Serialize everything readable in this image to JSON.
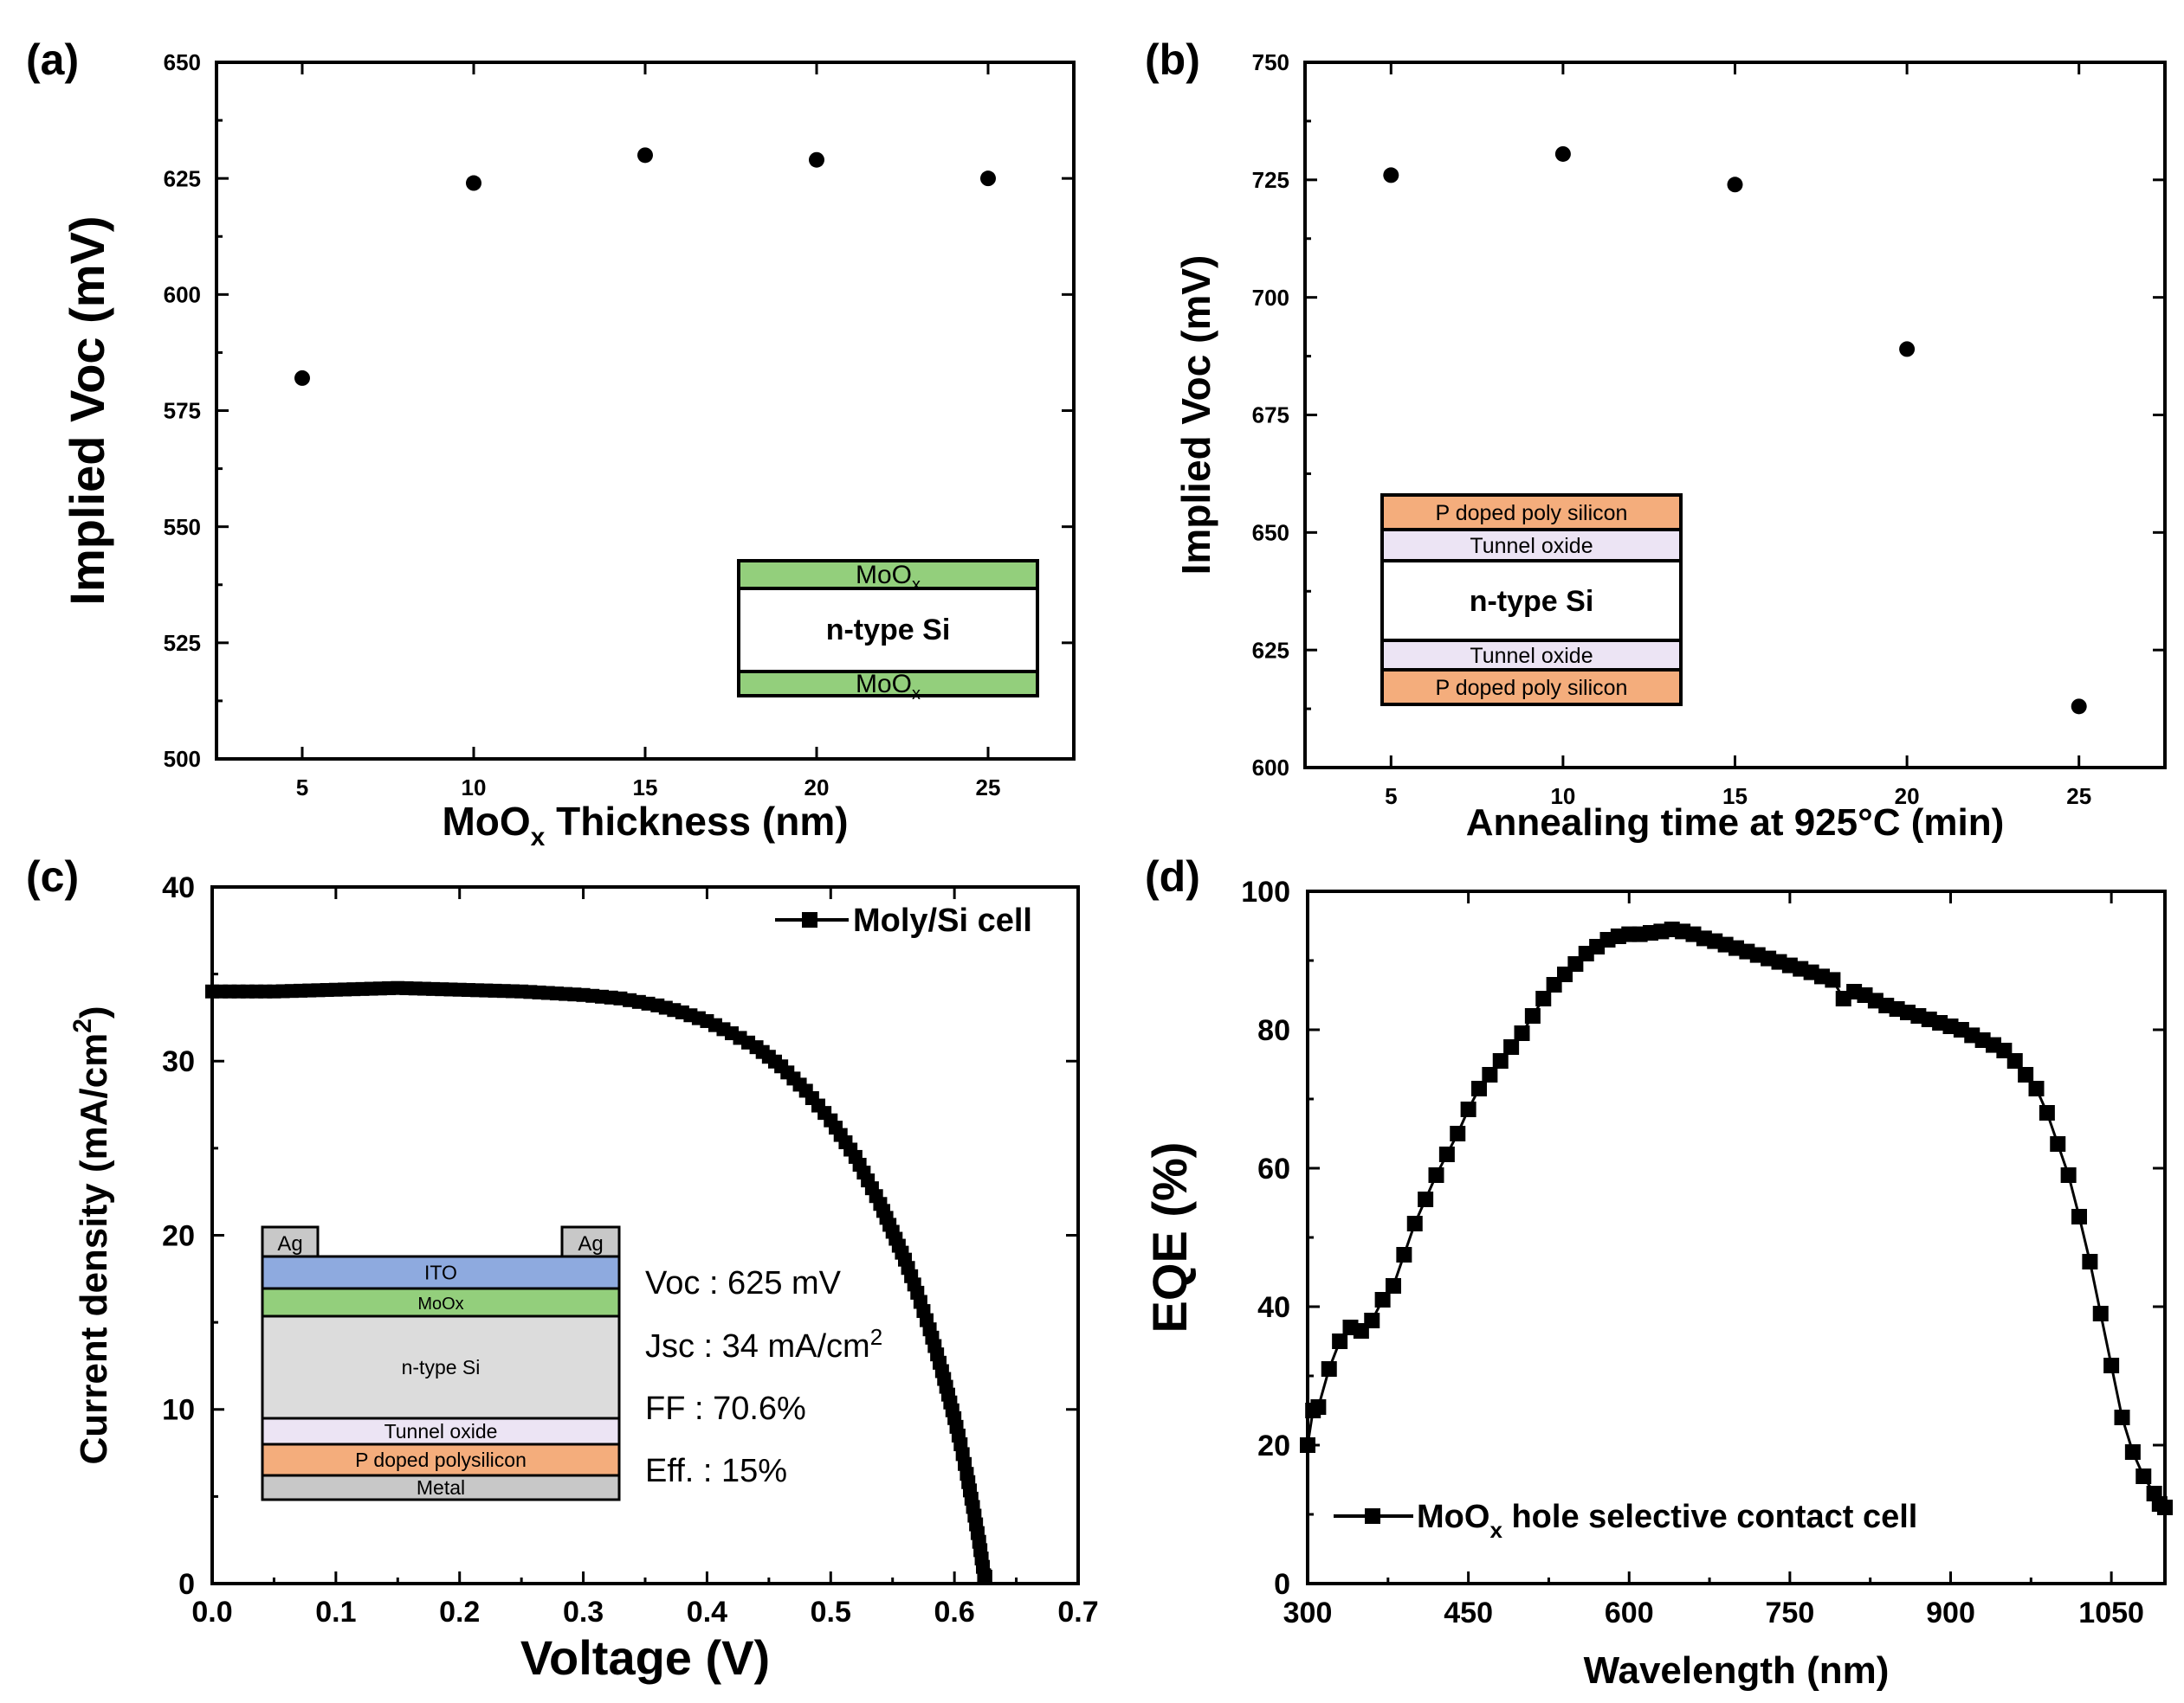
{
  "colors": {
    "moox_green": "#93cf7c",
    "orange": "#f4ad7c",
    "lavender": "#ece4f4",
    "ito_blue": "#8eaadf",
    "gray": "#c8c8c8",
    "si_gray": "#dcdcdc",
    "white": "#ffffff"
  },
  "chart_data": [
    {
      "panel": "(a)",
      "type": "scatter",
      "xlabel": "MoOx Thickness (nm)",
      "xlabel_main": "MoO",
      "xlabel_sub": "x",
      "xlabel_rest": " Thickness (nm)",
      "ylabel": "Implied Voc (mV)",
      "xlim": [
        2.5,
        27.5
      ],
      "ylim": [
        500,
        650
      ],
      "xticks": [
        5,
        10,
        15,
        20,
        25
      ],
      "yticks": [
        500,
        525,
        550,
        575,
        600,
        625,
        650
      ],
      "x": [
        5,
        10,
        15,
        20,
        25
      ],
      "y": [
        582,
        624,
        630,
        629,
        625
      ],
      "inset": {
        "layers": [
          {
            "label": "MoO",
            "sub": "x",
            "color": "moox_green"
          },
          {
            "label": "n-type Si",
            "sub": "",
            "color": "white"
          },
          {
            "label": "MoO",
            "sub": "x",
            "color": "moox_green"
          }
        ]
      }
    },
    {
      "panel": "(b)",
      "type": "scatter",
      "xlabel": "Annealing time at 925°C (min)",
      "ylabel": "Implied Voc (mV)",
      "xlim": [
        2.5,
        27.5
      ],
      "ylim": [
        600,
        750
      ],
      "xticks": [
        5,
        10,
        15,
        20,
        25
      ],
      "yticks": [
        600,
        625,
        650,
        675,
        700,
        725,
        750
      ],
      "x": [
        5,
        10,
        15,
        20,
        25
      ],
      "y": [
        726,
        730.5,
        724,
        689,
        613
      ],
      "inset": {
        "layers": [
          {
            "label": "P doped poly silicon",
            "color": "orange"
          },
          {
            "label": "Tunnel oxide",
            "color": "lavender"
          },
          {
            "label": "n-type Si",
            "color": "white"
          },
          {
            "label": "Tunnel oxide",
            "color": "lavender"
          },
          {
            "label": "P doped poly silicon",
            "color": "orange"
          }
        ]
      }
    },
    {
      "panel": "(c)",
      "type": "line",
      "xlabel": "Voltage (V)",
      "ylabel": "Current density (mA/cm2)",
      "ylabel_main": "Current density (mA/cm",
      "ylabel_sup": "2",
      "ylabel_end": ")",
      "xlim": [
        0,
        0.7
      ],
      "ylim": [
        0,
        40
      ],
      "xticks": [
        0.0,
        0.1,
        0.2,
        0.3,
        0.4,
        0.5,
        0.6,
        0.7
      ],
      "xtick_labels": [
        "0.0",
        "0.1",
        "0.2",
        "0.3",
        "0.4",
        "0.5",
        "0.6",
        "0.7"
      ],
      "yticks": [
        0,
        10,
        20,
        30,
        40
      ],
      "legend": "Moly/Si cell",
      "series": [
        {
          "name": "Moly/Si cell",
          "x": [
            0.0,
            0.05,
            0.1,
            0.15,
            0.2,
            0.25,
            0.3,
            0.33,
            0.36,
            0.38,
            0.4,
            0.42,
            0.44,
            0.46,
            0.48,
            0.5,
            0.52,
            0.54,
            0.55,
            0.56,
            0.57,
            0.58,
            0.59,
            0.6,
            0.605,
            0.61,
            0.615,
            0.62,
            0.625
          ],
          "y": [
            34.0,
            34.0,
            34.1,
            34.2,
            34.1,
            34.0,
            33.8,
            33.6,
            33.2,
            32.8,
            32.3,
            31.6,
            30.8,
            29.7,
            28.3,
            26.6,
            24.5,
            21.8,
            20.2,
            18.6,
            16.7,
            14.6,
            12.2,
            9.5,
            8.0,
            6.3,
            4.4,
            2.4,
            0.0
          ]
        }
      ],
      "inset": {
        "ag_left": "Ag",
        "ag_right": "Ag",
        "layers": [
          {
            "label": "ITO",
            "color": "ito_blue"
          },
          {
            "label": "MoOx",
            "color": "moox_green"
          },
          {
            "label": "n-type Si",
            "color": "si_gray"
          },
          {
            "label": "Tunnel oxide",
            "color": "lavender"
          },
          {
            "label": "P doped polysilicon",
            "color": "orange"
          },
          {
            "label": "Metal",
            "color": "gray"
          }
        ]
      },
      "params": {
        "voc": "Voc : 625 mV",
        "jsc_main": "Jsc : 34 mA/cm",
        "jsc_sup": "2",
        "ff": "FF : 70.6%",
        "eff": "Eff. : 15%"
      }
    },
    {
      "panel": "(d)",
      "type": "line",
      "xlabel": "Wavelength (nm)",
      "ylabel": "EQE (%)",
      "xlim": [
        300,
        1100
      ],
      "ylim": [
        0,
        100
      ],
      "xticks": [
        300,
        450,
        600,
        750,
        900,
        1050
      ],
      "yticks": [
        0,
        20,
        40,
        60,
        80,
        100
      ],
      "legend": "MoOx hole selective contact cell",
      "legend_main": "MoO",
      "legend_sub": "x",
      "legend_rest": " hole selective contact cell",
      "series": [
        {
          "name": "MoOx hole selective contact cell",
          "x": [
            300,
            305,
            310,
            320,
            330,
            340,
            350,
            360,
            370,
            380,
            390,
            400,
            410,
            420,
            430,
            440,
            450,
            460,
            470,
            480,
            490,
            500,
            510,
            520,
            530,
            540,
            550,
            560,
            570,
            580,
            590,
            600,
            610,
            620,
            630,
            640,
            650,
            660,
            670,
            680,
            690,
            700,
            710,
            720,
            730,
            740,
            750,
            760,
            770,
            780,
            790,
            800,
            810,
            820,
            830,
            840,
            850,
            860,
            870,
            880,
            890,
            900,
            910,
            920,
            930,
            940,
            950,
            960,
            970,
            980,
            990,
            1000,
            1010,
            1020,
            1030,
            1040,
            1050,
            1060,
            1070,
            1080,
            1090,
            1095,
            1100
          ],
          "y": [
            20,
            25,
            25.5,
            31,
            35,
            37,
            36.5,
            38,
            41,
            43,
            47.5,
            52,
            55.5,
            59,
            62,
            65,
            68.5,
            71.5,
            73.5,
            75.5,
            77.5,
            79.5,
            82,
            84.5,
            86.5,
            88,
            89.5,
            91,
            92,
            93,
            93.5,
            93.8,
            93.8,
            94,
            94.2,
            94.5,
            94.2,
            93.8,
            93.2,
            92.8,
            92.3,
            91.8,
            91.3,
            90.8,
            90.3,
            89.8,
            89.3,
            88.8,
            88.3,
            87.7,
            87.2,
            84.5,
            85.5,
            85,
            84.2,
            83.5,
            83,
            82.5,
            82,
            81.5,
            81,
            80.5,
            80,
            79.2,
            78.5,
            77.8,
            77,
            75.5,
            73.5,
            71.5,
            68,
            63.5,
            59,
            53,
            46.5,
            39,
            31.5,
            24,
            19,
            15.5,
            13,
            11.5,
            11
          ]
        }
      ]
    }
  ]
}
